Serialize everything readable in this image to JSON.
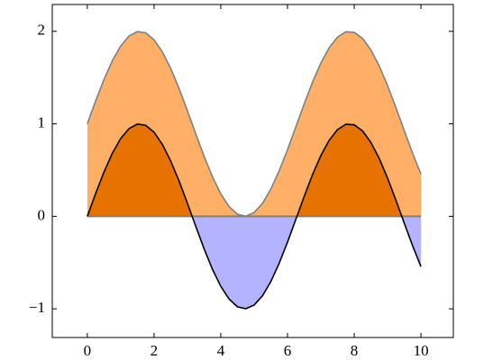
{
  "chart_data": {
    "type": "filled-line",
    "x": [
      0,
      0.25,
      0.5,
      0.75,
      1,
      1.25,
      1.5,
      1.75,
      2,
      2.25,
      2.5,
      2.75,
      3,
      3.25,
      3.5,
      3.75,
      4,
      4.25,
      4.5,
      4.75,
      5,
      5.25,
      5.5,
      5.75,
      6,
      6.25,
      6.5,
      6.75,
      7,
      7.25,
      7.5,
      7.75,
      8,
      8.25,
      8.5,
      8.75,
      9,
      9.25,
      9.5,
      9.75,
      10
    ],
    "series": [
      {
        "color": "#808080",
        "fill": "#ffb066",
        "values": [
          1,
          1.247,
          1.479,
          1.682,
          1.841,
          1.949,
          1.997,
          1.984,
          1.909,
          1.778,
          1.598,
          1.382,
          1.141,
          0.892,
          0.649,
          0.428,
          0.243,
          0.105,
          0.022,
          0.001,
          0.041,
          0.141,
          0.294,
          0.492,
          0.721,
          0.967,
          1.215,
          1.451,
          1.657,
          1.823,
          1.938,
          1.995,
          1.989,
          1.923,
          1.798,
          1.625,
          1.412,
          1.174,
          0.925,
          0.681,
          0.456
        ]
      },
      {
        "color": "#000000",
        "fill_positive": "#e67300",
        "fill_negative": "#b3b3ff",
        "values": [
          0,
          0.247,
          0.479,
          0.682,
          0.841,
          0.949,
          0.997,
          0.984,
          0.909,
          0.778,
          0.598,
          0.382,
          0.141,
          -0.108,
          -0.351,
          -0.572,
          -0.757,
          -0.895,
          -0.978,
          -0.999,
          -0.959,
          -0.859,
          -0.706,
          -0.508,
          -0.279,
          -0.033,
          0.215,
          0.451,
          0.657,
          0.823,
          0.938,
          0.995,
          0.989,
          0.923,
          0.798,
          0.625,
          0.412,
          0.174,
          -0.075,
          -0.319,
          -0.544
        ]
      }
    ],
    "baseline_color": "#808080",
    "xlim": [
      -1.05,
      10.97
    ],
    "ylim": [
      -1.31,
      2.29
    ],
    "xticks": [
      0,
      2,
      4,
      6,
      8,
      10
    ],
    "yticks": [
      {
        "value": -1,
        "label": "−1"
      },
      0,
      1,
      2
    ],
    "grid": false
  }
}
